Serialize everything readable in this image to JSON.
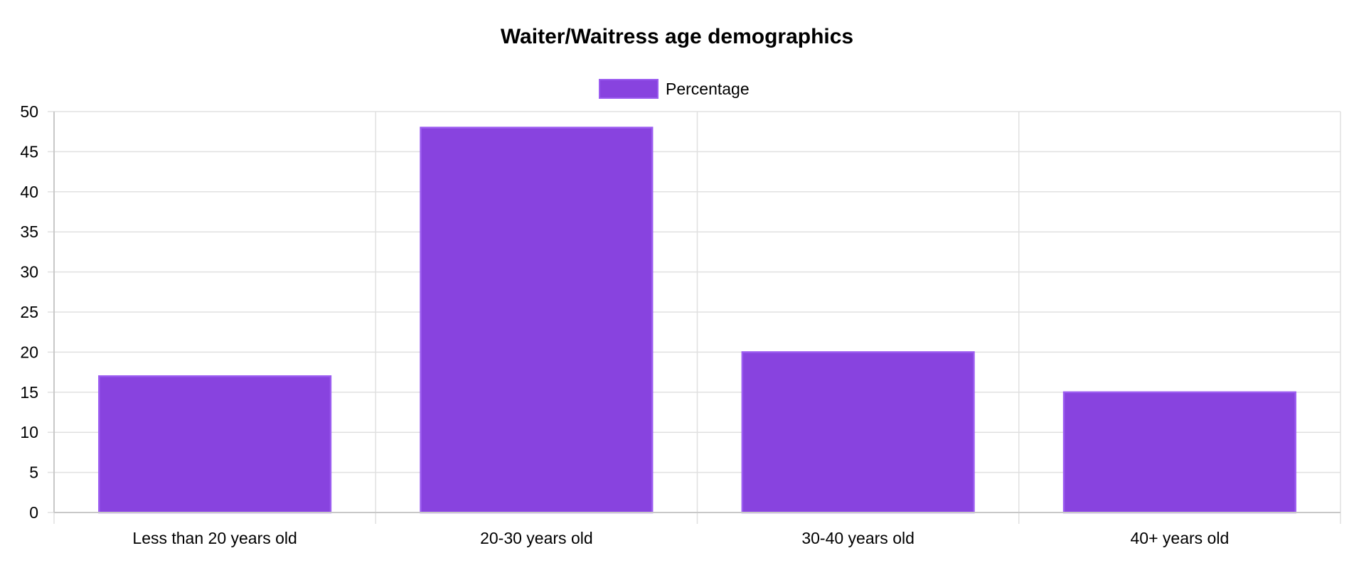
{
  "chart_data": {
    "type": "bar",
    "title": "Waiter/Waitress age demographics",
    "categories": [
      "Less than 20 years old",
      "20-30 years old",
      "30-40 years old",
      "40+ years old"
    ],
    "series": [
      {
        "name": "Percentage",
        "values": [
          17,
          48,
          20,
          15
        ]
      }
    ],
    "xlabel": "",
    "ylabel": "",
    "ylim": [
      0,
      50
    ],
    "yticks": [
      0,
      5,
      10,
      15,
      20,
      25,
      30,
      35,
      40,
      45,
      50
    ],
    "grid": true,
    "legend": "top-center"
  },
  "colors": {
    "bar_fill": "#8843df",
    "bar_border": "#9b5cf0",
    "grid": "#e0e0e0",
    "axis": "#c8c8c8",
    "text": "#000000"
  }
}
